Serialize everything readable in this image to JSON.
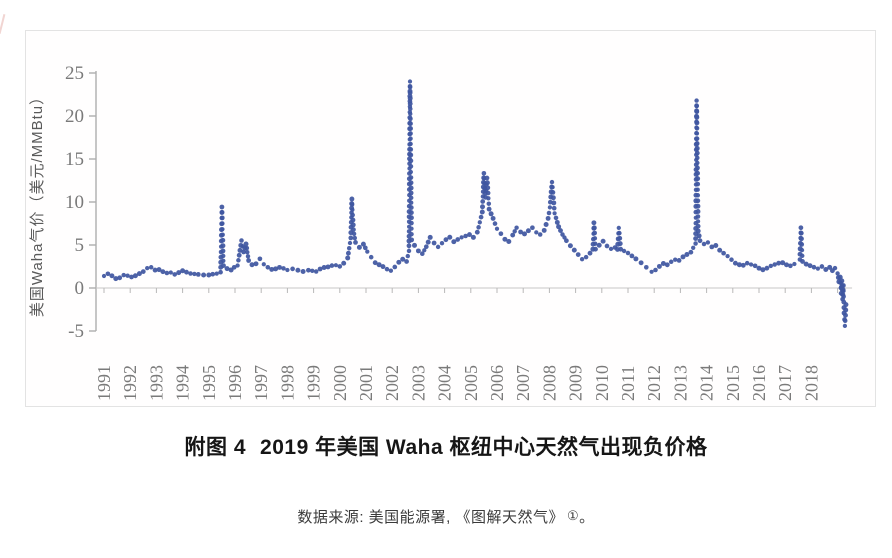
{
  "figure": {
    "caption_label": "附图 4",
    "caption_title": "2019 年美国 Waha 枢纽中心天然气出现负价格",
    "source_text": "数据来源: 美国能源署, 《图解天然气》",
    "footnote_marker": "①",
    "source_period": "。"
  },
  "chart_data": {
    "type": "scatter",
    "title": "",
    "xlabel": "",
    "ylabel": "美国Waha气价（美元/MMBtu）",
    "ylim": [
      -5,
      25
    ],
    "yticks": [
      25,
      20,
      15,
      10,
      5,
      0,
      -5
    ],
    "xtick_labels": [
      "1991",
      "1992",
      "1993",
      "1994",
      "1995",
      "1996",
      "1997",
      "1998",
      "1999",
      "2000",
      "2001",
      "2002",
      "2003",
      "2004",
      "2005",
      "2006",
      "2007",
      "2008",
      "2009",
      "2010",
      "2011",
      "2012",
      "2013",
      "2014",
      "2015",
      "2016",
      "2017",
      "2018"
    ],
    "x_range": [
      1991,
      2019.4
    ],
    "grid": false,
    "legend": "none",
    "marker_color": "#3f56a0",
    "axis_color": "#aeaeae",
    "tick_label_color": "#7a7a7a",
    "ylabel_color": "#5a5a5a",
    "points": [
      [
        1991.0,
        1.4
      ],
      [
        1991.15,
        1.7
      ],
      [
        1991.3,
        1.5
      ],
      [
        1991.45,
        1.2
      ],
      [
        1991.6,
        1.3
      ],
      [
        1991.75,
        1.6
      ],
      [
        1991.9,
        1.5
      ],
      [
        1992.05,
        1.3
      ],
      [
        1992.2,
        1.4
      ],
      [
        1992.35,
        1.6
      ],
      [
        1992.5,
        1.8
      ],
      [
        1992.65,
        2.2
      ],
      [
        1992.8,
        2.3
      ],
      [
        1992.95,
        2.0
      ],
      [
        1993.1,
        2.1
      ],
      [
        1993.25,
        1.9
      ],
      [
        1993.4,
        1.8
      ],
      [
        1993.55,
        1.9
      ],
      [
        1993.7,
        1.7
      ],
      [
        1993.85,
        1.9
      ],
      [
        1994.0,
        2.1
      ],
      [
        1994.15,
        1.9
      ],
      [
        1994.3,
        1.7
      ],
      [
        1994.45,
        1.6
      ],
      [
        1994.6,
        1.5
      ],
      [
        1994.8,
        1.4
      ],
      [
        1995.0,
        1.4
      ],
      [
        1995.15,
        1.5
      ],
      [
        1995.3,
        1.6
      ],
      [
        1995.45,
        1.8
      ],
      [
        1995.5,
        9.3
      ],
      [
        1995.56,
        2.6
      ],
      [
        1995.7,
        2.2
      ],
      [
        1995.85,
        2.0
      ],
      [
        1995.97,
        2.3
      ],
      [
        1996.1,
        2.5
      ],
      [
        1996.25,
        5.6
      ],
      [
        1996.33,
        4.3
      ],
      [
        1996.42,
        5.2
      ],
      [
        1996.52,
        3.1
      ],
      [
        1996.65,
        2.6
      ],
      [
        1996.8,
        2.7
      ],
      [
        1996.95,
        3.3
      ],
      [
        1997.1,
        2.7
      ],
      [
        1997.25,
        2.4
      ],
      [
        1997.4,
        2.2
      ],
      [
        1997.55,
        2.3
      ],
      [
        1997.7,
        2.5
      ],
      [
        1997.85,
        2.4
      ],
      [
        1998.0,
        2.2
      ],
      [
        1998.2,
        2.3
      ],
      [
        1998.4,
        2.1
      ],
      [
        1998.6,
        1.9
      ],
      [
        1998.8,
        2.0
      ],
      [
        1998.95,
        1.9
      ],
      [
        1999.1,
        1.8
      ],
      [
        1999.25,
        2.1
      ],
      [
        1999.4,
        2.3
      ],
      [
        1999.55,
        2.4
      ],
      [
        1999.7,
        2.6
      ],
      [
        1999.85,
        2.7
      ],
      [
        2000.0,
        2.6
      ],
      [
        2000.15,
        3.0
      ],
      [
        2000.3,
        3.6
      ],
      [
        2000.42,
        5.8
      ],
      [
        2000.46,
        10.4
      ],
      [
        2000.52,
        6.8
      ],
      [
        2000.6,
        5.2
      ],
      [
        2000.75,
        4.6
      ],
      [
        2000.9,
        5.0
      ],
      [
        2001.05,
        4.2
      ],
      [
        2001.2,
        3.6
      ],
      [
        2001.35,
        3.0
      ],
      [
        2001.5,
        2.8
      ],
      [
        2001.65,
        2.6
      ],
      [
        2001.8,
        2.3
      ],
      [
        2001.95,
        2.1
      ],
      [
        2002.1,
        2.5
      ],
      [
        2002.25,
        3.0
      ],
      [
        2002.4,
        3.3
      ],
      [
        2002.55,
        3.0
      ],
      [
        2002.64,
        4.2
      ],
      [
        2002.68,
        24.0
      ],
      [
        2002.74,
        5.6
      ],
      [
        2002.85,
        5.0
      ],
      [
        2003.0,
        4.4
      ],
      [
        2003.15,
        4.1
      ],
      [
        2003.3,
        4.9
      ],
      [
        2003.45,
        5.9
      ],
      [
        2003.6,
        5.2
      ],
      [
        2003.75,
        4.7
      ],
      [
        2003.9,
        5.1
      ],
      [
        2004.05,
        5.5
      ],
      [
        2004.2,
        5.8
      ],
      [
        2004.35,
        5.3
      ],
      [
        2004.5,
        5.6
      ],
      [
        2004.65,
        5.9
      ],
      [
        2004.8,
        6.1
      ],
      [
        2004.95,
        6.3
      ],
      [
        2005.1,
        6.0
      ],
      [
        2005.25,
        6.6
      ],
      [
        2005.44,
        8.8
      ],
      [
        2005.5,
        13.4
      ],
      [
        2005.56,
        10.6
      ],
      [
        2005.62,
        12.7
      ],
      [
        2005.7,
        9.2
      ],
      [
        2005.85,
        8.2
      ],
      [
        2006.0,
        7.0
      ],
      [
        2006.15,
        6.4
      ],
      [
        2006.3,
        5.7
      ],
      [
        2006.45,
        5.4
      ],
      [
        2006.6,
        6.1
      ],
      [
        2006.75,
        6.9
      ],
      [
        2006.9,
        6.4
      ],
      [
        2007.05,
        6.2
      ],
      [
        2007.2,
        6.6
      ],
      [
        2007.35,
        7.0
      ],
      [
        2007.5,
        6.5
      ],
      [
        2007.65,
        6.3
      ],
      [
        2007.8,
        6.8
      ],
      [
        2007.95,
        8.2
      ],
      [
        2008.02,
        9.4
      ],
      [
        2008.1,
        12.2
      ],
      [
        2008.2,
        8.8
      ],
      [
        2008.35,
        7.2
      ],
      [
        2008.5,
        6.2
      ],
      [
        2008.65,
        5.4
      ],
      [
        2008.8,
        4.8
      ],
      [
        2008.95,
        4.3
      ],
      [
        2009.1,
        3.8
      ],
      [
        2009.25,
        3.3
      ],
      [
        2009.4,
        3.6
      ],
      [
        2009.55,
        4.1
      ],
      [
        2009.66,
        4.6
      ],
      [
        2009.7,
        7.6
      ],
      [
        2009.76,
        4.4
      ],
      [
        2009.9,
        4.9
      ],
      [
        2010.05,
        5.4
      ],
      [
        2010.2,
        4.9
      ],
      [
        2010.35,
        4.6
      ],
      [
        2010.5,
        4.8
      ],
      [
        2010.6,
        4.6
      ],
      [
        2010.65,
        7.0
      ],
      [
        2010.72,
        4.4
      ],
      [
        2010.85,
        4.2
      ],
      [
        2011.0,
        4.0
      ],
      [
        2011.15,
        3.7
      ],
      [
        2011.3,
        3.4
      ],
      [
        2011.5,
        3.0
      ],
      [
        2011.7,
        2.5
      ],
      [
        2011.9,
        2.0
      ],
      [
        2012.05,
        2.2
      ],
      [
        2012.2,
        2.6
      ],
      [
        2012.35,
        2.9
      ],
      [
        2012.5,
        2.7
      ],
      [
        2012.65,
        3.0
      ],
      [
        2012.8,
        3.2
      ],
      [
        2012.95,
        3.1
      ],
      [
        2013.1,
        3.5
      ],
      [
        2013.25,
        3.8
      ],
      [
        2013.4,
        4.1
      ],
      [
        2013.58,
        5.2
      ],
      [
        2013.62,
        21.7
      ],
      [
        2013.68,
        6.6
      ],
      [
        2013.75,
        5.4
      ],
      [
        2013.9,
        5.0
      ],
      [
        2014.05,
        5.2
      ],
      [
        2014.2,
        4.7
      ],
      [
        2014.35,
        4.9
      ],
      [
        2014.5,
        4.4
      ],
      [
        2014.65,
        4.1
      ],
      [
        2014.8,
        3.8
      ],
      [
        2014.95,
        3.4
      ],
      [
        2015.1,
        3.0
      ],
      [
        2015.25,
        2.8
      ],
      [
        2015.4,
        2.7
      ],
      [
        2015.55,
        2.9
      ],
      [
        2015.7,
        2.7
      ],
      [
        2015.85,
        2.5
      ],
      [
        2016.0,
        2.2
      ],
      [
        2016.15,
        2.0
      ],
      [
        2016.3,
        2.2
      ],
      [
        2016.45,
        2.5
      ],
      [
        2016.6,
        2.7
      ],
      [
        2016.75,
        2.9
      ],
      [
        2016.9,
        3.0
      ],
      [
        2017.05,
        2.8
      ],
      [
        2017.2,
        2.7
      ],
      [
        2017.35,
        2.9
      ],
      [
        2017.56,
        3.4
      ],
      [
        2017.6,
        6.9
      ],
      [
        2017.66,
        3.2
      ],
      [
        2017.8,
        2.9
      ],
      [
        2017.95,
        2.7
      ],
      [
        2018.1,
        2.5
      ],
      [
        2018.25,
        2.3
      ],
      [
        2018.4,
        2.5
      ],
      [
        2018.55,
        2.1
      ],
      [
        2018.7,
        2.3
      ],
      [
        2018.8,
        1.9
      ],
      [
        2018.9,
        2.2
      ],
      [
        2019.0,
        1.6
      ],
      [
        2019.05,
        0.7
      ],
      [
        2019.1,
        1.3
      ],
      [
        2019.13,
        -0.5
      ],
      [
        2019.16,
        0.9
      ],
      [
        2019.19,
        -1.4
      ],
      [
        2019.22,
        0.2
      ],
      [
        2019.25,
        -2.8
      ],
      [
        2019.28,
        -4.3
      ],
      [
        2019.32,
        -2.0
      ]
    ]
  }
}
